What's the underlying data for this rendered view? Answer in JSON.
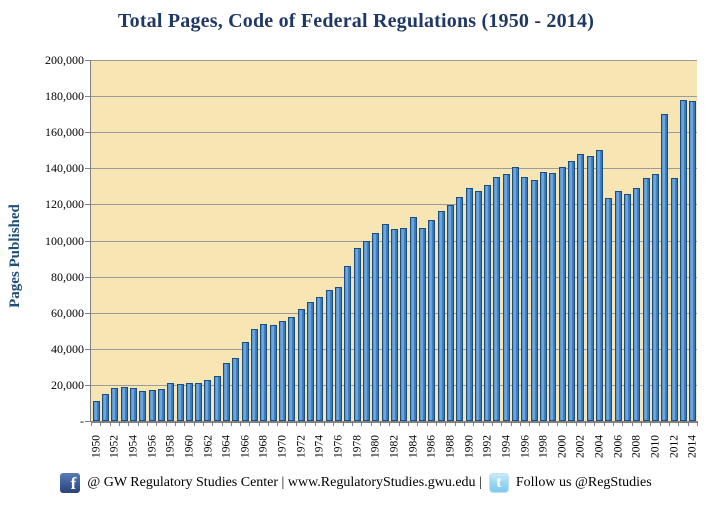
{
  "page": {
    "background": "#FFFFFF"
  },
  "chart_data": {
    "type": "bar",
    "title": "Total Pages, Code of Federal Regulations (1950 - 2014)",
    "ylabel": "Pages Published",
    "xlabel": "",
    "ylim": [
      0,
      200000
    ],
    "y_tick_step": 20000,
    "grid": "horizontal",
    "legend": "none",
    "y_tick_labels": [
      "200,000",
      "180,000",
      "160,000",
      "140,000",
      "120,000",
      "100,000",
      "80,000",
      "60,000",
      "40,000",
      "20,000",
      "-"
    ],
    "x_tick_labels": [
      "1950",
      "1952",
      "1954",
      "1956",
      "1958",
      "1960",
      "1962",
      "1964",
      "1966",
      "1968",
      "1970",
      "1972",
      "1974",
      "1976",
      "1978",
      "1980",
      "1982",
      "1984",
      "1986",
      "1988",
      "1990",
      "1992",
      "1994",
      "1996",
      "1998",
      "2000",
      "2002",
      "2004",
      "2006",
      "2008",
      "2010",
      "2012",
      "2014"
    ],
    "years": [
      1950,
      1951,
      1952,
      1953,
      1954,
      1955,
      1956,
      1957,
      1958,
      1959,
      1960,
      1961,
      1962,
      1963,
      1964,
      1965,
      1966,
      1967,
      1968,
      1969,
      1970,
      1971,
      1972,
      1973,
      1974,
      1975,
      1976,
      1977,
      1978,
      1979,
      1980,
      1981,
      1982,
      1983,
      1984,
      1985,
      1986,
      1987,
      1988,
      1989,
      1990,
      1991,
      1992,
      1993,
      1994,
      1995,
      1996,
      1997,
      1998,
      1999,
      2000,
      2001,
      2002,
      2003,
      2004,
      2005,
      2006,
      2007,
      2008,
      2009,
      2010,
      2011,
      2012,
      2013,
      2014
    ],
    "values": [
      9700,
      14000,
      17300,
      17600,
      17000,
      15500,
      16200,
      16800,
      19900,
      19200,
      19700,
      20200,
      21400,
      23800,
      31000,
      34000,
      42800,
      49800,
      52600,
      52300,
      54500,
      56700,
      61000,
      64900,
      67500,
      71500,
      73000,
      84700,
      94500,
      98500,
      102900,
      108000,
      105400,
      106000,
      112000,
      106000,
      110300,
      115100,
      118400,
      123200,
      128000,
      126300,
      129500,
      133900,
      136000,
      139400,
      133900,
      132400,
      136600,
      136500,
      139800,
      143100,
      146900,
      145600,
      149000,
      122300,
      126500,
      124400,
      128100,
      133300,
      135600,
      169000,
      133400,
      176500,
      176300
    ],
    "colors": {
      "title": "#1F3864",
      "axis_title": "#1F4E79",
      "bar_fill": "#4486C8",
      "bar_highlight": "#7EB1E6",
      "bar_border": "#1B4E7F",
      "plot_background": "#F7E5B3",
      "gridline": "#9B9B9B",
      "axis_line": "#808080",
      "tick_text": "#000000"
    }
  },
  "footer": {
    "facebook_icon_glyph": "f",
    "left_text": "@ GW Regulatory Studies Center | www.RegulatoryStudies.gwu.edu  |",
    "twitter_icon_glyph": "t",
    "right_text": "Follow us @RegStudies"
  }
}
